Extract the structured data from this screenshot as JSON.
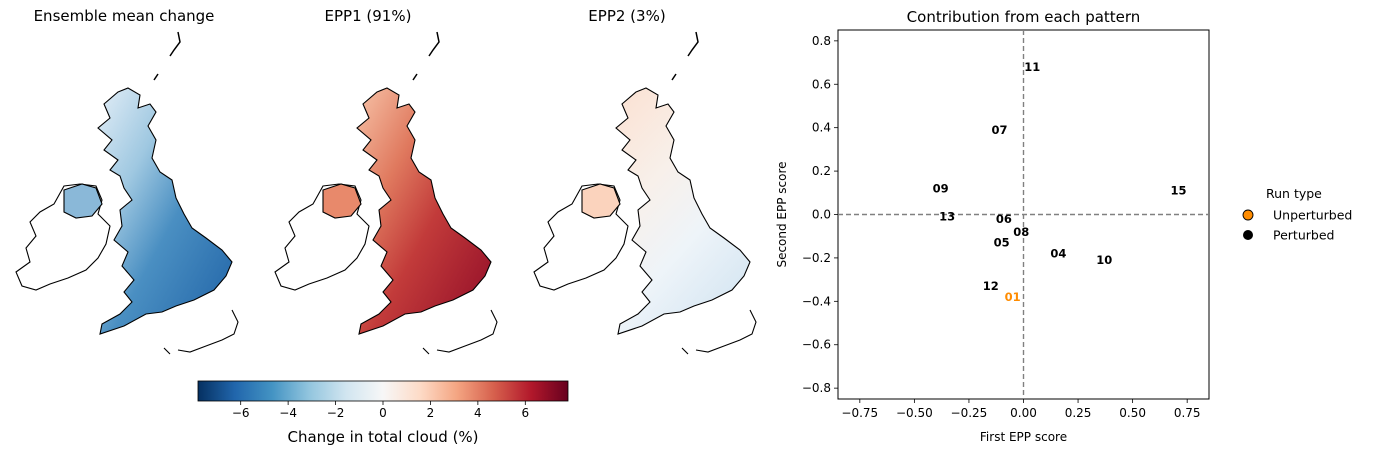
{
  "maps": [
    {
      "title": "Ensemble mean change",
      "scheme": "mean"
    },
    {
      "title": "EPP1 (91%)",
      "scheme": "epp1"
    },
    {
      "title": "EPP2 (3%)",
      "scheme": "epp2"
    }
  ],
  "colorbar": {
    "label": "Change in total cloud (%)",
    "range": [
      -7.8,
      7.8
    ],
    "ticks": [
      -6,
      -4,
      -2,
      0,
      2,
      4,
      6
    ],
    "tick_labels": [
      "−6",
      "−4",
      "−2",
      "0",
      "2",
      "4",
      "6"
    ],
    "colors": [
      "#053061",
      "#2166ac",
      "#4393c3",
      "#92c5de",
      "#d1e5f0",
      "#f7f7f7",
      "#fddbc7",
      "#f4a582",
      "#d6604d",
      "#b2182b",
      "#67001f"
    ]
  },
  "chart_data": [
    {
      "type": "scatter",
      "title": "Contribution from each pattern",
      "xlabel": "First EPP score",
      "ylabel": "Second EPP score",
      "xlim": [
        -0.85,
        0.85
      ],
      "ylim": [
        -0.85,
        0.85
      ],
      "xticks": [
        -0.75,
        -0.5,
        -0.25,
        0.0,
        0.25,
        0.5,
        0.75
      ],
      "xtick_labels": [
        "−0.75",
        "−0.50",
        "−0.25",
        "0.00",
        "0.25",
        "0.50",
        "0.75"
      ],
      "yticks": [
        -0.8,
        -0.6,
        -0.4,
        -0.2,
        0.0,
        0.2,
        0.4,
        0.6,
        0.8
      ],
      "ytick_labels": [
        "−0.8",
        "−0.6",
        "−0.4",
        "−0.2",
        "0.0",
        "0.2",
        "0.4",
        "0.6",
        "0.8"
      ],
      "grid": false,
      "reference_lines": {
        "x": 0.0,
        "y": 0.0,
        "style": "dashed",
        "color": "#808080"
      },
      "points": [
        {
          "label": "01",
          "x": -0.05,
          "y": -0.38,
          "run_type": "Unperturbed"
        },
        {
          "label": "04",
          "x": 0.16,
          "y": -0.18,
          "run_type": "Perturbed"
        },
        {
          "label": "05",
          "x": -0.1,
          "y": -0.13,
          "run_type": "Perturbed"
        },
        {
          "label": "06",
          "x": -0.09,
          "y": -0.02,
          "run_type": "Perturbed"
        },
        {
          "label": "07",
          "x": -0.11,
          "y": 0.39,
          "run_type": "Perturbed"
        },
        {
          "label": "08",
          "x": -0.01,
          "y": -0.08,
          "run_type": "Perturbed"
        },
        {
          "label": "09",
          "x": -0.38,
          "y": 0.12,
          "run_type": "Perturbed"
        },
        {
          "label": "10",
          "x": 0.37,
          "y": -0.21,
          "run_type": "Perturbed"
        },
        {
          "label": "11",
          "x": 0.04,
          "y": 0.68,
          "run_type": "Perturbed"
        },
        {
          "label": "12",
          "x": -0.15,
          "y": -0.33,
          "run_type": "Perturbed"
        },
        {
          "label": "13",
          "x": -0.35,
          "y": -0.01,
          "run_type": "Perturbed"
        },
        {
          "label": "15",
          "x": 0.71,
          "y": 0.11,
          "run_type": "Perturbed"
        }
      ],
      "legend": {
        "title": "Run type",
        "placement": "outside-right",
        "entries": [
          {
            "name": "Unperturbed",
            "color": "#ff8c00"
          },
          {
            "name": "Perturbed",
            "color": "#000000"
          }
        ]
      }
    }
  ]
}
